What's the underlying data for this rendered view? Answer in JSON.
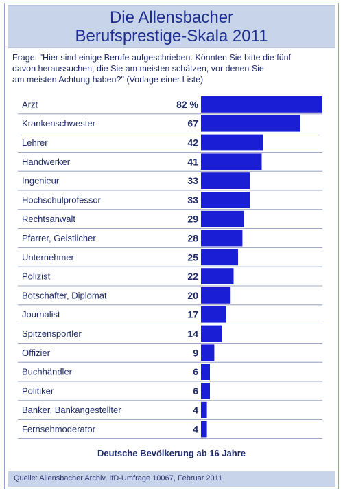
{
  "header": {
    "title_line1": "Die Allensbacher",
    "title_line2": "Berufsprestige-Skala 2011"
  },
  "question": "Frage: \"Hier sind einige Berufe aufgeschrieben. Könnten Sie bitte die fünf\n       davon heraussuchen, die Sie am meisten schätzen, vor denen Sie\n       am meisten Achtung haben?\" (Vorlage einer Liste)",
  "population": "Deutsche Bevölkerung ab 16 Jahre",
  "source": "Quelle: Allensbacher Archiv, IfD-Umfrage 10067, Februar 2011",
  "colors": {
    "bar": "#1a1fd6",
    "header_bg": "#c8d4ea",
    "text": "#1e2a6a",
    "title": "#1f2f8f"
  },
  "chart_data": {
    "type": "bar",
    "orientation": "horizontal",
    "value_suffix_first": " %",
    "categories": [
      "Arzt",
      "Krankenschwester",
      "Lehrer",
      "Handwerker",
      "Ingenieur",
      "Hochschulprofessor",
      "Rechtsanwalt",
      "Pfarrer, Geistlicher",
      "Unternehmer",
      "Polizist",
      "Botschafter, Diplomat",
      "Journalist",
      "Spitzensportler",
      "Offizier",
      "Buchhändler",
      "Politiker",
      "Banker, Bankangestellter",
      "Fernsehmoderator"
    ],
    "values": [
      82,
      67,
      42,
      41,
      33,
      33,
      29,
      28,
      25,
      22,
      20,
      17,
      14,
      9,
      6,
      6,
      4,
      4
    ],
    "value_labels": [
      "82 %",
      "67",
      "42",
      "41",
      "33",
      "33",
      "29",
      "28",
      "25",
      "22",
      "20",
      "17",
      "14",
      "9",
      "6",
      "6",
      "4",
      "4"
    ],
    "xlim": [
      0,
      82
    ]
  }
}
